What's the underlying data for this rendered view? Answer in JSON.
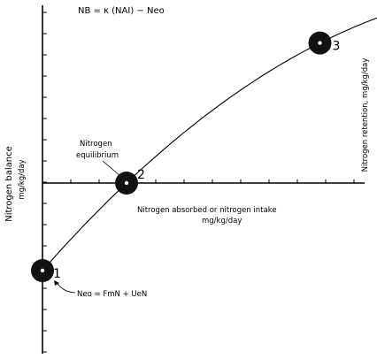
{
  "chart_data": {
    "type": "line",
    "title": "NB = κ (NAI) − Neo",
    "xlabel": "Nitrogen absorbed or nitrogen intake",
    "xlabel_units": "mg/kg/day",
    "ylabel": "Nitrogen balance",
    "ylabel_units": "mg/kg/day",
    "ylabel_right": "Nitrogen retention, mg/kg/day",
    "grid": false,
    "points": [
      {
        "label": "1",
        "x": 0,
        "y": -1
      },
      {
        "label": "2",
        "x": 1,
        "y": 0
      },
      {
        "label": "3",
        "x": 3.3,
        "y": 1.6
      }
    ],
    "annotations": {
      "equilibrium": [
        "Nitrogen",
        "equilibrium"
      ],
      "endogenous": "Neo = FmN + UeN"
    },
    "colors": {
      "ink": "#000000",
      "marker": "#111111"
    }
  }
}
